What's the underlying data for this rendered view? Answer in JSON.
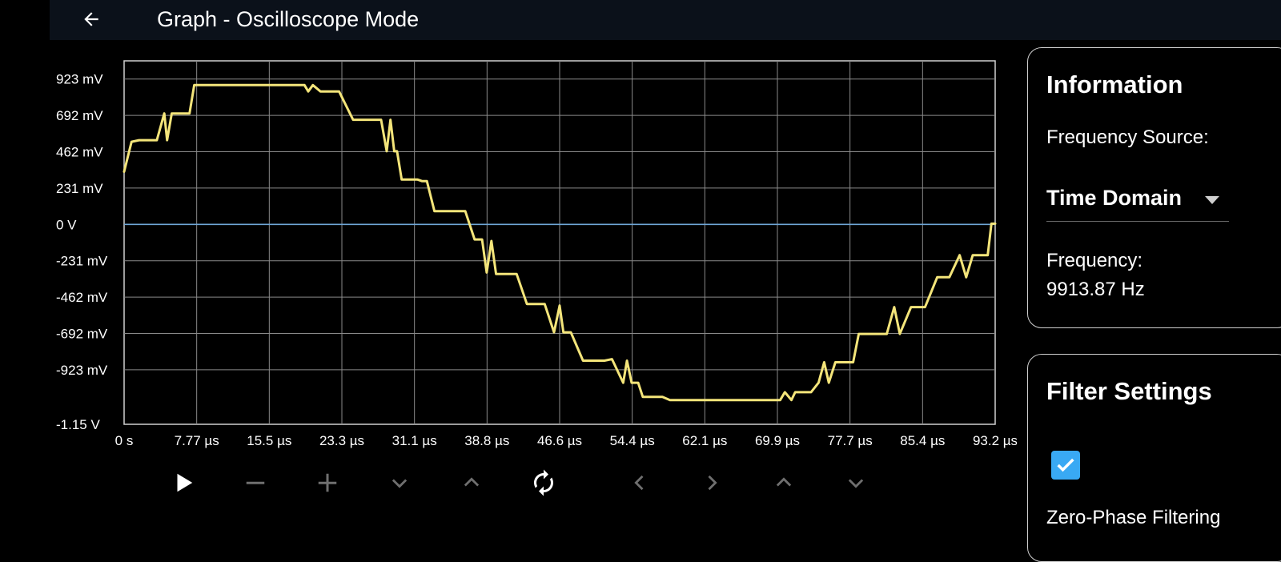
{
  "app_bar": {
    "title": "Graph - Oscilloscope Mode",
    "back_icon": "arrow-left-icon"
  },
  "chart_data": {
    "type": "line",
    "y_tick_labels": [
      "923 mV",
      "692 mV",
      "462 mV",
      "231 mV",
      "0 V",
      "-231 mV",
      "-462 mV",
      "-692 mV",
      "-923 mV",
      "-1.15 V"
    ],
    "x_tick_labels": [
      "0 s",
      "7.77 µs",
      "15.5 µs",
      "23.3 µs",
      "31.1 µs",
      "38.8 µs",
      "46.6 µs",
      "54.4 µs",
      "62.1 µs",
      "69.9 µs",
      "77.7 µs",
      "85.4 µs",
      "93.2 µs"
    ],
    "y_range_mV": [
      -1154,
      1154
    ],
    "x_range_us": [
      0,
      93.2
    ],
    "grid": true,
    "series": [
      {
        "color": "#f4e57a",
        "x_us": [
          0,
          0.8,
          1.6,
          3.5,
          4.3,
          4.6,
          5.1,
          5.6,
          6.2,
          7.0,
          7.5,
          8.0,
          10.2,
          12.1,
          14.0,
          15.7,
          17.6,
          19.3,
          19.7,
          20.2,
          21.0,
          21.6,
          22.1,
          23.0,
          24.5,
          25.1,
          26.0,
          27.5,
          28.1,
          28.5,
          28.9,
          29.2,
          29.7,
          31.4,
          31.9,
          32.4,
          33.2,
          34.1,
          35.2,
          36.5,
          37.5,
          38.3,
          38.8,
          39.3,
          39.8,
          40.2,
          40.6,
          42.0,
          43.1,
          45.0,
          46.0,
          46.6,
          47.0,
          47.4,
          47.8,
          49.1,
          49.7,
          51.4,
          52.2,
          53.4,
          53.8,
          54.3,
          54.6,
          55.0,
          55.5,
          56.9,
          57.6,
          58.4,
          59.8,
          60.4,
          61.1,
          61.7,
          62.1,
          64.4,
          66.4,
          68.3,
          70.2,
          70.7,
          71.4,
          71.8,
          72.3,
          73.5,
          74.3,
          74.9,
          75.4,
          76.1,
          78.0,
          78.6,
          79.3,
          80.0,
          80.6,
          81.6,
          82.4,
          83.0,
          84.2,
          85.3,
          85.7,
          87.0,
          87.5,
          88.3,
          89.4,
          90.1,
          90.8,
          91.8,
          92.4,
          92.8,
          93.2
        ],
        "y_mV": [
          450,
          640,
          650,
          650,
          820,
          650,
          820,
          820,
          820,
          820,
          1000,
          1000,
          1000,
          1000,
          1000,
          1000,
          1000,
          1000,
          960,
          1000,
          960,
          960,
          960,
          960,
          780,
          780,
          780,
          780,
          580,
          780,
          580,
          580,
          400,
          400,
          390,
          390,
          200,
          200,
          200,
          200,
          20,
          20,
          -190,
          10,
          -200,
          -200,
          -200,
          -200,
          -390,
          -390,
          -570,
          -400,
          -570,
          -570,
          -570,
          -750,
          -750,
          -750,
          -740,
          -890,
          -750,
          -890,
          -890,
          -890,
          -980,
          -980,
          -980,
          -1000,
          -1000,
          -1000,
          -1000,
          -1000,
          -1000,
          -1000,
          -1000,
          -1000,
          -1000,
          -950,
          -1000,
          -950,
          -950,
          -950,
          -890,
          -760,
          -890,
          -760,
          -760,
          -580,
          -580,
          -580,
          -580,
          -580,
          -410,
          -580,
          -410,
          -410,
          -410,
          -220,
          -220,
          -220,
          -80,
          -220,
          -80,
          -80,
          -80,
          120,
          120
        ]
      }
    ],
    "zero_line_color": "#6fa7d8"
  },
  "controls": {
    "play_icon": "play-icon",
    "zoom_out_icon": "minus-icon",
    "zoom_in_icon": "plus-icon",
    "chevron_down_icon": "chevron-down-icon",
    "chevron_up_icon": "chevron-up-icon",
    "refresh_icon": "refresh-icon",
    "chevron_left_icon": "chevron-left-icon",
    "chevron_right_icon": "chevron-right-icon"
  },
  "information": {
    "heading": "Information",
    "frequency_source_label": "Frequency Source:",
    "frequency_source_value": "Time Domain",
    "frequency_label": "Frequency:",
    "frequency_value": "9913.87 Hz"
  },
  "filter_settings": {
    "heading": "Filter Settings",
    "zero_phase_checked": true,
    "zero_phase_label": "Zero-Phase Filtering"
  },
  "colors": {
    "app_bar_bg": "#0b111a",
    "trace": "#f4e57a",
    "accent": "#39a9f4",
    "grid": "#8a8a8a"
  }
}
